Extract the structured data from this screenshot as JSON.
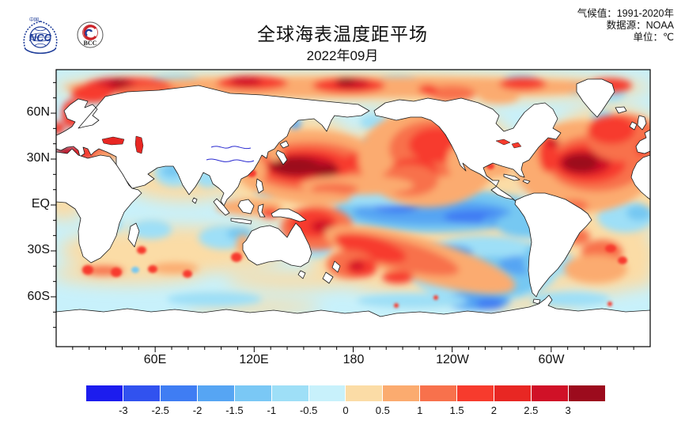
{
  "header": {
    "title": "全球海表温度距平场",
    "subtitle": "2022年09月",
    "meta_lines": [
      "气候值：1991-2020年",
      "数据源：NOAA",
      "单位：℃"
    ],
    "logos": {
      "ncc_label": "NCC",
      "ncc_top": "中国",
      "bcc_label": "BCC"
    }
  },
  "map": {
    "x_tick_labels": [
      "60E",
      "120E",
      "180",
      "120W",
      "60W"
    ],
    "y_tick_labels": [
      "60N",
      "30N",
      "EQ",
      "30S",
      "60S"
    ]
  },
  "colorbar": {
    "tick_labels": [
      "-3",
      "-2.5",
      "-2",
      "-1.5",
      "-1",
      "-0.5",
      "0",
      "0.5",
      "1",
      "1.5",
      "2",
      "2.5",
      "3"
    ],
    "colors": [
      "#1c1cee",
      "#3152ef",
      "#3f7df3",
      "#56a5f3",
      "#7ac8f5",
      "#9edff7",
      "#c8f1fb",
      "#fbdca6",
      "#fbab6f",
      "#f8714c",
      "#f73b2d",
      "#e82723",
      "#d01127",
      "#9c0b1d"
    ]
  },
  "chart_data": {
    "type": "heatmap",
    "title": "全球海表温度距平场",
    "subtitle": "2022年09月",
    "unit": "°C",
    "climatology": "1991-2020年",
    "data_source": "NOAA",
    "projection": "equirectangular, Pacific-centered, 0E-360E, 90N-90S",
    "x_tick_labels": [
      "60E",
      "120E",
      "180",
      "120W",
      "60W"
    ],
    "y_tick_labels": [
      "60N",
      "30N",
      "EQ",
      "30S",
      "60S"
    ],
    "colorbar_boundaries": [
      -3,
      -2.5,
      -2,
      -1.5,
      -1,
      -0.5,
      0,
      0.5,
      1,
      1.5,
      2,
      2.5,
      3
    ],
    "colorbar_colors": [
      "#1c1cee",
      "#3152ef",
      "#3f7df3",
      "#56a5f3",
      "#7ac8f5",
      "#9edff7",
      "#c8f1fb",
      "#fbdca6",
      "#fbab6f",
      "#f8714c",
      "#f73b2d",
      "#e82723",
      "#d01127",
      "#9c0b1d"
    ],
    "land_color": "#ffffff",
    "features": [
      {
        "region": "Northwest Pacific east of Japan (marine heatwave)",
        "anomaly_c": "> +3"
      },
      {
        "region": "Northwest Atlantic off Newfoundland",
        "anomaly_c": "> +3"
      },
      {
        "region": "Arctic coastal seas (Barents-Kara, Laptev-East Siberian, Beaufort)",
        "anomaly_c": "+2 to > +3"
      },
      {
        "region": "Mediterranean Sea and Black Sea",
        "anomaly_c": "+2 to > +3"
      },
      {
        "region": "Northeast Atlantic west of British Isles",
        "anomaly_c": "+1.5 to +2.5"
      },
      {
        "region": "Gulf of Alaska / Northeast Pacific",
        "anomaly_c": "+1 to +2.5"
      },
      {
        "region": "Coral Sea and Southwest Pacific (New Guinea to New Zealand)",
        "anomaly_c": "+1.5 to +3"
      },
      {
        "region": "South Pacific diagonal warm band toward 50S",
        "anomaly_c": "+1 to +2"
      },
      {
        "region": "Equatorial central-eastern Pacific cold tongue (La Nina)",
        "anomaly_c": "-0.5 to -2"
      },
      {
        "region": "Southeast Pacific off South America",
        "anomaly_c": "-0.5 to -1.5"
      },
      {
        "region": "Arabian Sea / Bay of Bengal patches",
        "anomaly_c": "-0.5 to -1"
      },
      {
        "region": "Indian Ocean and Southern Ocean background",
        "anomaly_c": "-0.5 to +0.5"
      }
    ]
  }
}
